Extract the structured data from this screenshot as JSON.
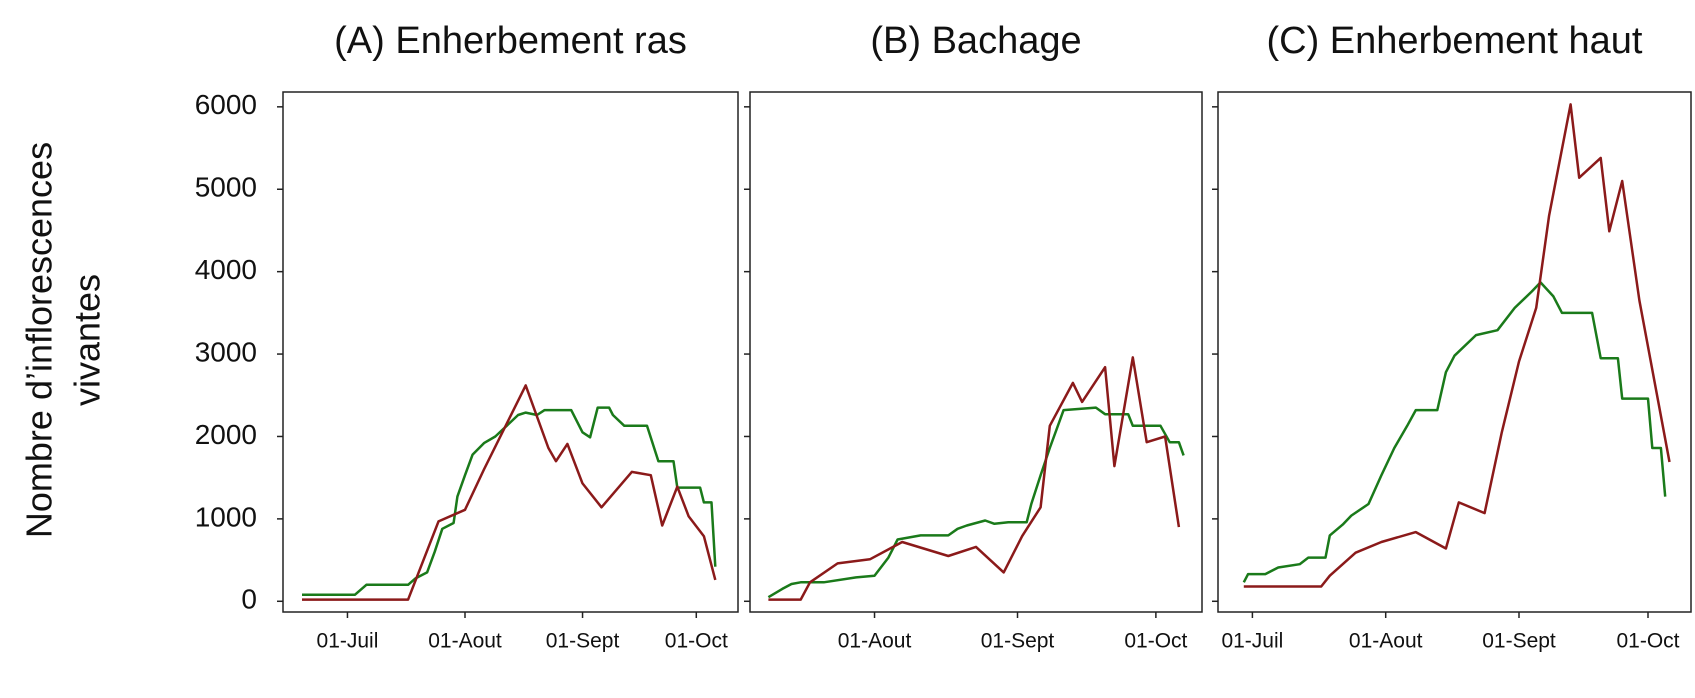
{
  "chart_data": [
    {
      "type": "line",
      "title": "(A) Enherbement ras",
      "ylabel": [
        "Nombre d’inflorescences",
        "vivantes"
      ],
      "xlim": [
        165,
        285
      ],
      "ylim": [
        -130,
        6180
      ],
      "xticks": [
        {
          "value": 182,
          "label": "01-Juil"
        },
        {
          "value": 213,
          "label": "01-Aout"
        },
        {
          "value": 244,
          "label": "01-Sept"
        },
        {
          "value": 274,
          "label": "01-Oct"
        }
      ],
      "yticks": [
        0,
        1000,
        2000,
        3000,
        4000,
        5000,
        6000
      ],
      "series": [
        {
          "color": "#1a7a1a",
          "x": [
            170,
            184,
            187,
            198,
            200,
            203,
            205,
            207,
            210,
            211,
            213,
            215,
            218,
            221,
            224,
            227,
            229,
            232,
            234,
            238,
            241,
            244,
            246,
            248,
            251,
            252,
            255,
            261,
            264,
            268,
            269,
            275,
            276,
            278,
            279
          ],
          "values": [
            80,
            80,
            200,
            200,
            280,
            350,
            600,
            880,
            950,
            1270,
            1530,
            1780,
            1920,
            2000,
            2130,
            2260,
            2290,
            2260,
            2320,
            2320,
            2320,
            2050,
            1990,
            2350,
            2350,
            2260,
            2130,
            2130,
            1700,
            1700,
            1380,
            1380,
            1200,
            1200,
            420
          ]
        },
        {
          "color": "#8b1a1a",
          "x": [
            170,
            198,
            206,
            213,
            218,
            229,
            235,
            237,
            240,
            244,
            249,
            257,
            262,
            265,
            269,
            272,
            276,
            279
          ],
          "values": [
            20,
            20,
            970,
            1110,
            1600,
            2620,
            1860,
            1700,
            1910,
            1430,
            1140,
            1570,
            1530,
            920,
            1390,
            1030,
            790,
            260
          ]
        }
      ]
    },
    {
      "type": "line",
      "title": "(B) Bachage",
      "xlim": [
        186,
        284
      ],
      "ylim": [
        -130,
        6180
      ],
      "xticks": [
        {
          "value": 213,
          "label": "01-Aout"
        },
        {
          "value": 244,
          "label": "01-Sept"
        },
        {
          "value": 274,
          "label": "01-Oct"
        }
      ],
      "series": [
        {
          "color": "#1a7a1a",
          "x": [
            190,
            193,
            195,
            197,
            202,
            209,
            213,
            216,
            218,
            223,
            229,
            231,
            233,
            237,
            239,
            242,
            246,
            247,
            249,
            251,
            254,
            261,
            263,
            268,
            269,
            275,
            277,
            279,
            280
          ],
          "values": [
            50,
            150,
            210,
            230,
            230,
            290,
            310,
            530,
            750,
            800,
            800,
            880,
            920,
            980,
            940,
            960,
            960,
            1180,
            1530,
            1860,
            2320,
            2350,
            2270,
            2270,
            2130,
            2130,
            1930,
            1930,
            1770
          ]
        },
        {
          "color": "#8b1a1a",
          "x": [
            190,
            197,
            199,
            205,
            212,
            219,
            229,
            235,
            241,
            245,
            249,
            251,
            256,
            258,
            263,
            265,
            269,
            272,
            276,
            279
          ],
          "values": [
            20,
            20,
            230,
            460,
            510,
            720,
            550,
            660,
            350,
            790,
            1140,
            2130,
            2650,
            2420,
            2840,
            1640,
            2960,
            1930,
            2000,
            900
          ]
        }
      ]
    },
    {
      "type": "line",
      "title": "(C) Enherbement haut",
      "xlim": [
        174,
        284
      ],
      "ylim": [
        -130,
        6180
      ],
      "xticks": [
        {
          "value": 182,
          "label": "01-Juil"
        },
        {
          "value": 213,
          "label": "01-Aout"
        },
        {
          "value": 244,
          "label": "01-Sept"
        },
        {
          "value": 274,
          "label": "01-Oct"
        }
      ],
      "series": [
        {
          "color": "#1a7a1a",
          "x": [
            180,
            181,
            185,
            188,
            193,
            195,
            199,
            200,
            203,
            205,
            209,
            212,
            215,
            218,
            220,
            225,
            227,
            229,
            234,
            239,
            243,
            247,
            249,
            252,
            254,
            261,
            263,
            267,
            268,
            274,
            275,
            277,
            278
          ],
          "values": [
            230,
            330,
            330,
            410,
            450,
            530,
            530,
            800,
            930,
            1040,
            1180,
            1530,
            1860,
            2130,
            2320,
            2320,
            2780,
            2980,
            3230,
            3290,
            3560,
            3760,
            3870,
            3700,
            3500,
            3500,
            2950,
            2950,
            2460,
            2460,
            1860,
            1860,
            1270
          ]
        },
        {
          "color": "#8b1a1a",
          "x": [
            180,
            198,
            200,
            206,
            212,
            220,
            227,
            230,
            236,
            240,
            244,
            248,
            251,
            256,
            258,
            263,
            265,
            268,
            272,
            279
          ],
          "values": [
            180,
            180,
            310,
            590,
            720,
            840,
            640,
            1200,
            1070,
            2050,
            2910,
            3560,
            4680,
            6030,
            5140,
            5380,
            4490,
            5100,
            3650,
            1690
          ]
        }
      ]
    }
  ]
}
